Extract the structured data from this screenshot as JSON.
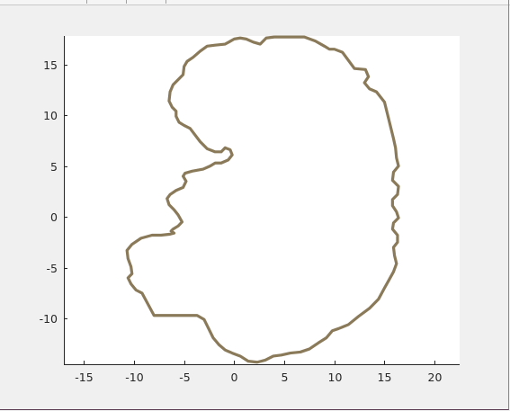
{
  "chart_data": {
    "type": "line",
    "title": "",
    "xlabel": "",
    "ylabel": "",
    "xlim": [
      -17,
      22.5
    ],
    "ylim": [
      -14.5,
      17.8
    ],
    "xticks": [
      -15,
      -10,
      -5,
      0,
      5,
      10,
      15,
      20
    ],
    "yticks": [
      -10,
      -5,
      0,
      5,
      10,
      15
    ],
    "x_tick_labels": [
      "-15",
      "-10",
      "-5",
      "0",
      "5",
      "10",
      "15",
      "20"
    ],
    "y_tick_labels": [
      "-10",
      "-5",
      "0",
      "5",
      "10",
      "15"
    ],
    "grid": false,
    "line_color": "#8a7a5a",
    "series": [
      {
        "name": "",
        "x": [
          0,
          -0.9,
          -1.9,
          -2.7,
          -3.4,
          -4.1,
          -4.7,
          -5.0,
          -5.1,
          -5.6,
          -6.1,
          -6.4,
          -6.5,
          -6.2,
          -5.8,
          -5.8,
          -5.5,
          -5.0,
          -4.4,
          -3.4,
          -2.7,
          -1.9,
          -1.3,
          -0.9,
          -0.4,
          -0.2,
          -0.6,
          -1.3,
          -1.9,
          -2.4,
          -3.1,
          -4.2,
          -4.9,
          -5.1,
          -4.8,
          -5.1,
          -5.8,
          -6.4,
          -6.7,
          -6.5,
          -6.0,
          -5.6,
          -5.2,
          -5.6,
          -6.1,
          -6.3,
          -6.0,
          -6.4,
          -7.3,
          -8.2,
          -9.3,
          -10.2,
          -10.7,
          -10.6,
          -10.3,
          -10.2,
          -10.6,
          -10.3,
          -9.8,
          -9.2,
          -8.0,
          -6.5,
          -5.0,
          -3.7,
          -3.0,
          -2.6,
          -2.1,
          -1.5,
          -0.9,
          -0.2,
          0.6,
          1.4,
          2.3,
          3.1,
          3.9,
          4.7,
          5.6,
          6.6,
          7.5,
          8.4,
          9.2,
          9.8,
          10.4,
          11.4,
          12.4,
          13.5,
          14.4,
          15.0,
          15.4,
          15.9,
          16.2,
          16.0,
          15.9,
          16.3,
          16.3,
          15.8,
          15.9,
          16.4,
          16.2,
          15.8,
          15.8,
          16.3,
          16.4,
          15.8,
          15.9,
          16.4,
          16.2,
          16.1,
          15.9,
          15.0,
          14.2,
          13.5,
          13.0,
          13.4,
          13.1,
          12.0,
          10.8,
          10.0,
          9.5,
          9.0,
          8.1,
          7.0,
          5.8,
          4.8,
          4.0,
          3.2,
          2.6,
          1.9,
          1.2,
          0.6,
          0.0
        ],
        "y": [
          17.5,
          17.0,
          16.9,
          16.8,
          16.3,
          15.7,
          15.3,
          14.8,
          14.0,
          13.5,
          13.0,
          12.3,
          11.4,
          10.8,
          10.4,
          9.9,
          9.3,
          9.0,
          8.7,
          7.4,
          6.7,
          6.4,
          6.4,
          6.8,
          6.6,
          6.1,
          5.6,
          5.3,
          5.3,
          5.0,
          4.7,
          4.5,
          4.3,
          4.0,
          3.5,
          2.9,
          2.6,
          2.2,
          1.8,
          1.2,
          0.7,
          0.2,
          -0.5,
          -0.9,
          -1.2,
          -1.4,
          -1.6,
          -1.7,
          -1.8,
          -1.8,
          -2.1,
          -2.7,
          -3.3,
          -4.1,
          -4.9,
          -5.6,
          -6.0,
          -6.6,
          -7.2,
          -7.5,
          -9.7,
          -9.7,
          -9.7,
          -9.7,
          -10.1,
          -10.9,
          -11.9,
          -12.6,
          -13.1,
          -13.4,
          -13.7,
          -14.2,
          -14.3,
          -14.1,
          -13.7,
          -13.6,
          -13.4,
          -13.3,
          -13.0,
          -12.4,
          -11.9,
          -11.2,
          -11.0,
          -10.6,
          -9.8,
          -9.0,
          -8.1,
          -7.0,
          -6.3,
          -5.4,
          -4.6,
          -3.8,
          -3.0,
          -2.5,
          -1.8,
          -1.2,
          -0.6,
          -0.1,
          0.5,
          1.1,
          1.7,
          2.2,
          3.0,
          3.6,
          4.4,
          5.0,
          5.8,
          6.8,
          7.7,
          11.3,
          12.3,
          12.6,
          13.2,
          13.8,
          14.5,
          14.6,
          16.2,
          16.5,
          16.5,
          16.8,
          17.3,
          17.7,
          17.7,
          17.7,
          17.7,
          17.6,
          17.0,
          17.2,
          17.5,
          17.6,
          17.5
        ]
      }
    ]
  }
}
